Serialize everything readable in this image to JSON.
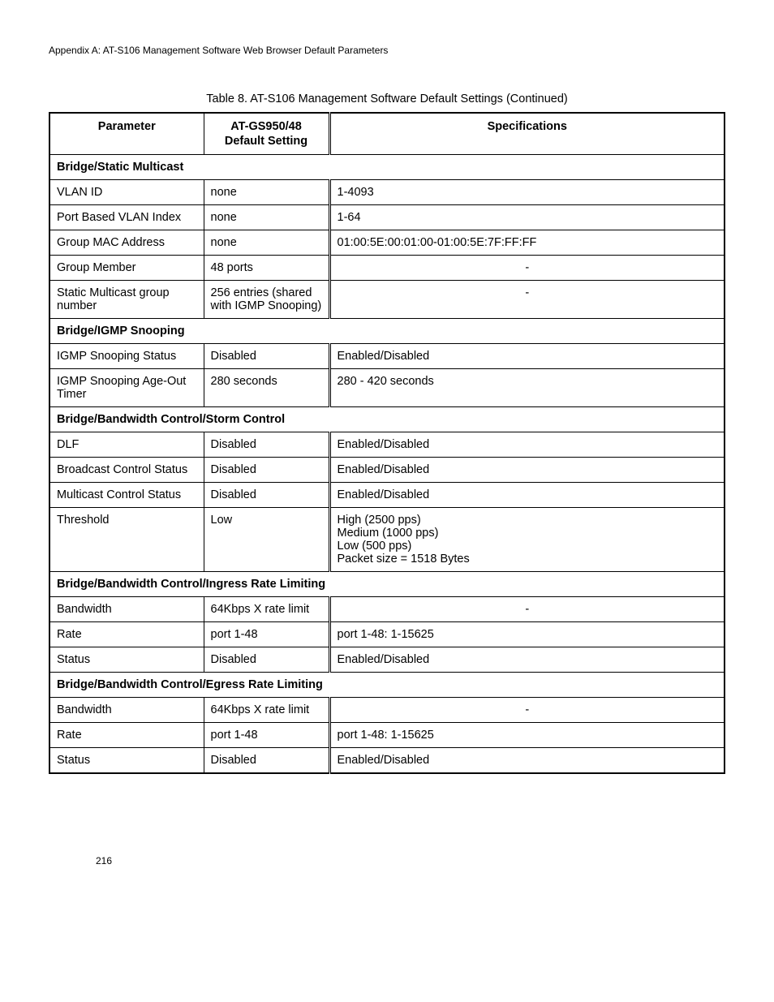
{
  "appendix_header": "Appendix A: AT-S106 Management Software Web Browser Default Parameters",
  "table_caption": "Table 8. AT-S106 Management Software Default Settings (Continued)",
  "columns": {
    "parameter": "Parameter",
    "default_setting_line1": "AT-GS950/48",
    "default_setting_line2": "Default Setting",
    "specifications": "Specifications"
  },
  "sections": [
    {
      "title": "Bridge/Static Multicast",
      "rows": [
        {
          "param": "VLAN ID",
          "def": "none",
          "spec": "1-4093",
          "spec_align": "left"
        },
        {
          "param": "Port Based VLAN Index",
          "def": "none",
          "spec": "1-64",
          "spec_align": "left"
        },
        {
          "param": "Group MAC Address",
          "def": "none",
          "spec": "01:00:5E:00:01:00-01:00:5E:7F:FF:FF",
          "spec_align": "left"
        },
        {
          "param": "Group Member",
          "def": "48 ports",
          "spec": "-",
          "spec_align": "center"
        },
        {
          "param": "Static Multicast group number",
          "def": "256 entries (shared with IGMP Snooping)",
          "spec": "-",
          "spec_align": "center"
        }
      ]
    },
    {
      "title": "Bridge/IGMP Snooping",
      "rows": [
        {
          "param": "IGMP Snooping Status",
          "def": "Disabled",
          "spec": "Enabled/Disabled",
          "spec_align": "left"
        },
        {
          "param": "IGMP Snooping Age-Out Timer",
          "def": "280 seconds",
          "spec": "280 - 420 seconds",
          "spec_align": "left"
        }
      ]
    },
    {
      "title": "Bridge/Bandwidth Control/Storm Control",
      "rows": [
        {
          "param": "DLF",
          "def": "Disabled",
          "spec": "Enabled/Disabled",
          "spec_align": "left"
        },
        {
          "param": "Broadcast Control Status",
          "def": "Disabled",
          "spec": "Enabled/Disabled",
          "spec_align": "left"
        },
        {
          "param": "Multicast Control Status",
          "def": "Disabled",
          "spec": "Enabled/Disabled",
          "spec_align": "left"
        },
        {
          "param": "Threshold",
          "def": "Low",
          "spec": "High (2500 pps)\nMedium (1000 pps)\nLow (500 pps)\nPacket size = 1518 Bytes",
          "spec_align": "left"
        }
      ]
    },
    {
      "title": "Bridge/Bandwidth Control/Ingress Rate Limiting",
      "rows": [
        {
          "param": "Bandwidth",
          "def": "64Kbps X rate limit",
          "spec": "-",
          "spec_align": "center"
        },
        {
          "param": "Rate",
          "def": "port 1-48",
          "spec": "port 1-48: 1-15625",
          "spec_align": "left"
        },
        {
          "param": "Status",
          "def": "Disabled",
          "spec": "Enabled/Disabled",
          "spec_align": "left"
        }
      ]
    },
    {
      "title": "Bridge/Bandwidth Control/Egress Rate Limiting",
      "rows": [
        {
          "param": "Bandwidth",
          "def": "64Kbps X rate limit",
          "spec": "-",
          "spec_align": "center"
        },
        {
          "param": "Rate",
          "def": "port 1-48",
          "spec": "port 1-48: 1-15625",
          "spec_align": "left"
        },
        {
          "param": "Status",
          "def": "Disabled",
          "spec": "Enabled/Disabled",
          "spec_align": "left"
        }
      ]
    }
  ],
  "page_number": "216"
}
